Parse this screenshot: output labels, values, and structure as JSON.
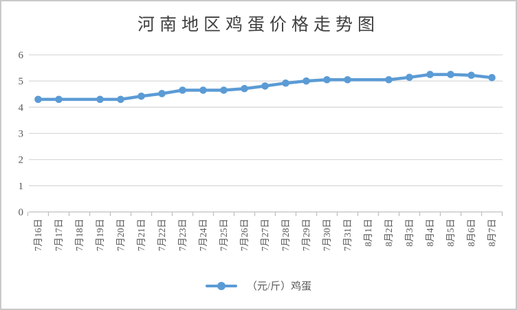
{
  "title": "河南地区鸡蛋价格走势图",
  "legend": {
    "series_label": "（元/斤）鸡蛋",
    "position": "bottom"
  },
  "colors": {
    "series": "#5B9BD5",
    "gridline": "#D9D9D9",
    "axis_line": "#BFBFBF",
    "tick_label": "#595959",
    "title_text": "#404040",
    "frame_border": "#C9C9C9",
    "background": "#FFFFFF"
  },
  "chart_data": {
    "type": "line",
    "title": "河南地区鸡蛋价格走势图",
    "xlabel": "",
    "ylabel": "",
    "categories": [
      "7月16日",
      "7月17日",
      "7月18日",
      "7月19日",
      "7月20日",
      "7月21日",
      "7月22日",
      "7月23日",
      "7月24日",
      "7月25日",
      "7月26日",
      "7月27日",
      "7月28日",
      "7月29日",
      "7月30日",
      "7月31日",
      "8月1日",
      "8月2日",
      "8月3日",
      "8月4日",
      "8月5日",
      "8月6日",
      "8月7日"
    ],
    "series": [
      {
        "name": "（元/斤）鸡蛋",
        "values": [
          4.3,
          4.3,
          null,
          4.3,
          4.3,
          4.42,
          4.52,
          4.65,
          4.65,
          4.65,
          4.71,
          4.81,
          4.92,
          5.0,
          5.05,
          5.05,
          null,
          5.05,
          5.14,
          5.25,
          5.25,
          5.22,
          5.13
        ],
        "marker": "circle",
        "gap_categories": [
          "7月18日",
          "8月1日"
        ]
      }
    ],
    "ylim": [
      0,
      6
    ],
    "yticks": [
      0,
      1,
      2,
      3,
      4,
      5,
      6
    ],
    "grid": true,
    "xlabel_rotation_degrees": 90,
    "legend_position": "bottom"
  }
}
